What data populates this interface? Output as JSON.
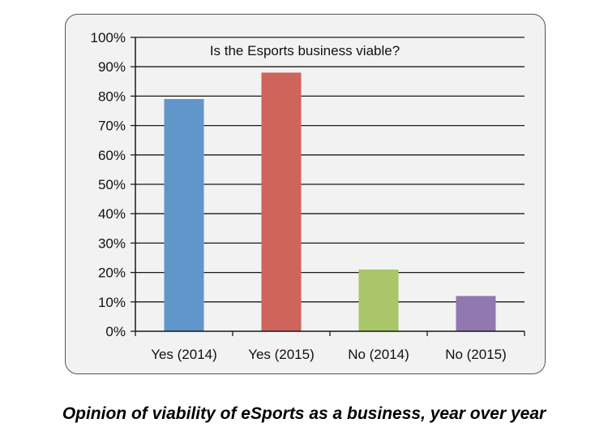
{
  "chart_data": {
    "type": "bar",
    "title": "Is the Esports business viable?",
    "categories": [
      "Yes (2014)",
      "Yes (2015)",
      "No (2014)",
      "No (2015)"
    ],
    "values": [
      79,
      88,
      21,
      12
    ],
    "bar_colors": [
      "#6096c9",
      "#cf645c",
      "#a9c66a",
      "#9278b0"
    ],
    "ylim": [
      0,
      100
    ],
    "yticks": [
      0,
      10,
      20,
      30,
      40,
      50,
      60,
      70,
      80,
      90,
      100
    ],
    "ytick_format": "{v}%",
    "xlabel": "",
    "ylabel": "",
    "grid": true,
    "legend": "none"
  },
  "caption": "Opinion of viability of eSports as a business, year over year"
}
